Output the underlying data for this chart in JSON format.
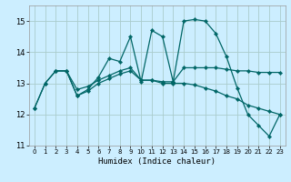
{
  "xlabel": "Humidex (Indice chaleur)",
  "bg_color": "#cceeff",
  "grid_color": "#aacccc",
  "line_color": "#006666",
  "xlim": [
    -0.5,
    23.5
  ],
  "ylim": [
    11.0,
    15.5
  ],
  "yticks": [
    11,
    12,
    13,
    14,
    15
  ],
  "xticks": [
    0,
    1,
    2,
    3,
    4,
    5,
    6,
    7,
    8,
    9,
    10,
    11,
    12,
    13,
    14,
    15,
    16,
    17,
    18,
    19,
    20,
    21,
    22,
    23
  ],
  "line1_x": [
    0,
    1,
    2,
    3,
    4,
    5,
    6,
    7,
    8,
    9,
    10,
    11,
    12,
    13,
    14,
    15,
    16,
    17,
    18,
    19,
    20,
    21,
    22,
    23
  ],
  "line1_y": [
    12.2,
    13.0,
    13.4,
    13.4,
    12.6,
    12.8,
    13.2,
    13.8,
    13.7,
    14.5,
    13.05,
    14.7,
    14.5,
    13.05,
    15.0,
    15.05,
    15.0,
    14.6,
    13.85,
    12.85,
    12.0,
    11.65,
    11.3,
    12.0
  ],
  "line2_x": [
    0,
    1,
    2,
    3,
    4,
    5,
    6,
    7,
    8,
    9,
    10,
    11,
    12,
    13,
    14,
    15,
    16,
    17,
    18,
    19,
    20,
    21,
    22,
    23
  ],
  "line2_y": [
    12.2,
    13.0,
    13.4,
    13.4,
    12.6,
    12.75,
    13.0,
    13.15,
    13.3,
    13.4,
    13.1,
    13.1,
    13.0,
    13.0,
    13.0,
    12.95,
    12.85,
    12.75,
    12.6,
    12.5,
    12.3,
    12.2,
    12.1,
    12.0
  ],
  "line3_x": [
    2,
    3,
    4,
    5,
    6,
    7,
    8,
    9,
    10,
    11,
    12,
    13,
    14,
    15,
    16,
    17,
    18,
    19,
    20,
    21,
    22,
    23
  ],
  "line3_y": [
    13.4,
    13.4,
    12.8,
    12.9,
    13.1,
    13.25,
    13.4,
    13.5,
    13.1,
    13.1,
    13.05,
    13.05,
    13.5,
    13.5,
    13.5,
    13.5,
    13.45,
    13.4,
    13.4,
    13.35,
    13.35,
    13.35
  ]
}
